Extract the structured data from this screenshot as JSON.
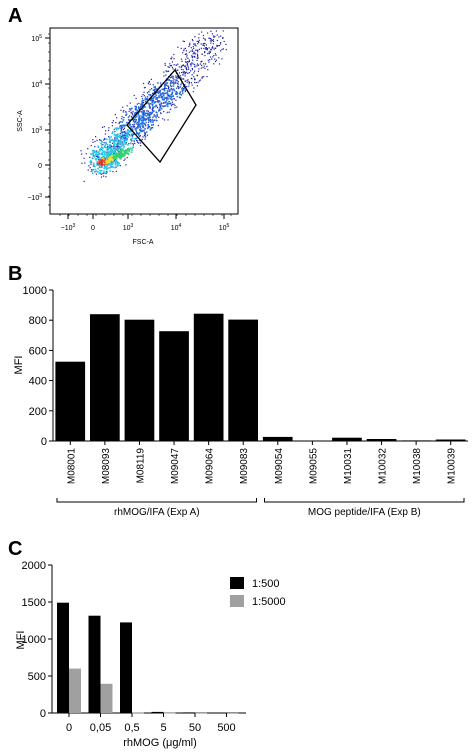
{
  "panels": {
    "a": {
      "label": "A"
    },
    "b": {
      "label": "B"
    },
    "c": {
      "label": "C"
    }
  },
  "chart_data": [
    {
      "panel": "A",
      "type": "scatter",
      "title": "",
      "xlabel": "FSC-A",
      "ylabel": "SSC-A",
      "xscale": "biexponential",
      "yscale": "biexponential",
      "x_ticks": [
        "-10^3",
        "0",
        "10^3",
        "10^4",
        "10^5"
      ],
      "y_ticks": [
        "-10^3",
        "0",
        "10^3",
        "10^4",
        "10^5"
      ],
      "x_tick_labels": [
        {
          "base": "−10",
          "exp": "3"
        },
        {
          "base": "0",
          "exp": ""
        },
        {
          "base": "10",
          "exp": "3"
        },
        {
          "base": "10",
          "exp": "4"
        },
        {
          "base": "10",
          "exp": "5"
        }
      ],
      "y_tick_labels": [
        {
          "base": "−10",
          "exp": "3"
        },
        {
          "base": "0",
          "exp": ""
        },
        {
          "base": "10",
          "exp": "3"
        },
        {
          "base": "10",
          "exp": "4"
        },
        {
          "base": "10",
          "exp": "5"
        }
      ],
      "density_colors": [
        "#1e22a8",
        "#1f6fe0",
        "#28c8e8",
        "#35d070",
        "#f0e030",
        "#e03020"
      ],
      "gate_color": "#000000"
    },
    {
      "panel": "B",
      "type": "bar",
      "title": "",
      "ylabel": "MFI",
      "xlabel": "",
      "ylim": [
        0,
        1000
      ],
      "yticks": [
        0,
        200,
        400,
        600,
        800,
        1000
      ],
      "categories": [
        "M08001",
        "M08093",
        "M08119",
        "M09047",
        "M09064",
        "M09083",
        "M09054",
        "M09055",
        "M10031",
        "M10032",
        "M10038",
        "M10039"
      ],
      "values": [
        525,
        840,
        803,
        727,
        843,
        804,
        27,
        3,
        22,
        13,
        4,
        10
      ],
      "groups": [
        {
          "label": "rhMOG/IFA (Exp A)",
          "members": [
            "M08001",
            "M08093",
            "M08119",
            "M09047",
            "M09064",
            "M09083"
          ]
        },
        {
          "label": "MOG peptide/IFA (Exp B)",
          "members": [
            "M09054",
            "M09055",
            "M10031",
            "M10032",
            "M10038",
            "M10039"
          ]
        }
      ],
      "bar_color": "#000000"
    },
    {
      "panel": "C",
      "type": "bar",
      "title": "",
      "ylabel": "MFI",
      "xlabel": "rhMOG (μg/ml)",
      "ylim": [
        0,
        2000
      ],
      "yticks": [
        0,
        500,
        1000,
        1500,
        2000
      ],
      "categories": [
        "0",
        "0,05",
        "0,5",
        "5",
        "50",
        "500"
      ],
      "series": [
        {
          "name": "1:500",
          "color": "#000000",
          "values": [
            1490,
            1315,
            1225,
            15,
            8,
            5
          ]
        },
        {
          "name": "1:5000",
          "color": "#a0a0a0",
          "values": [
            600,
            395,
            5,
            4,
            3,
            2
          ]
        }
      ],
      "legend": "top-right"
    }
  ]
}
